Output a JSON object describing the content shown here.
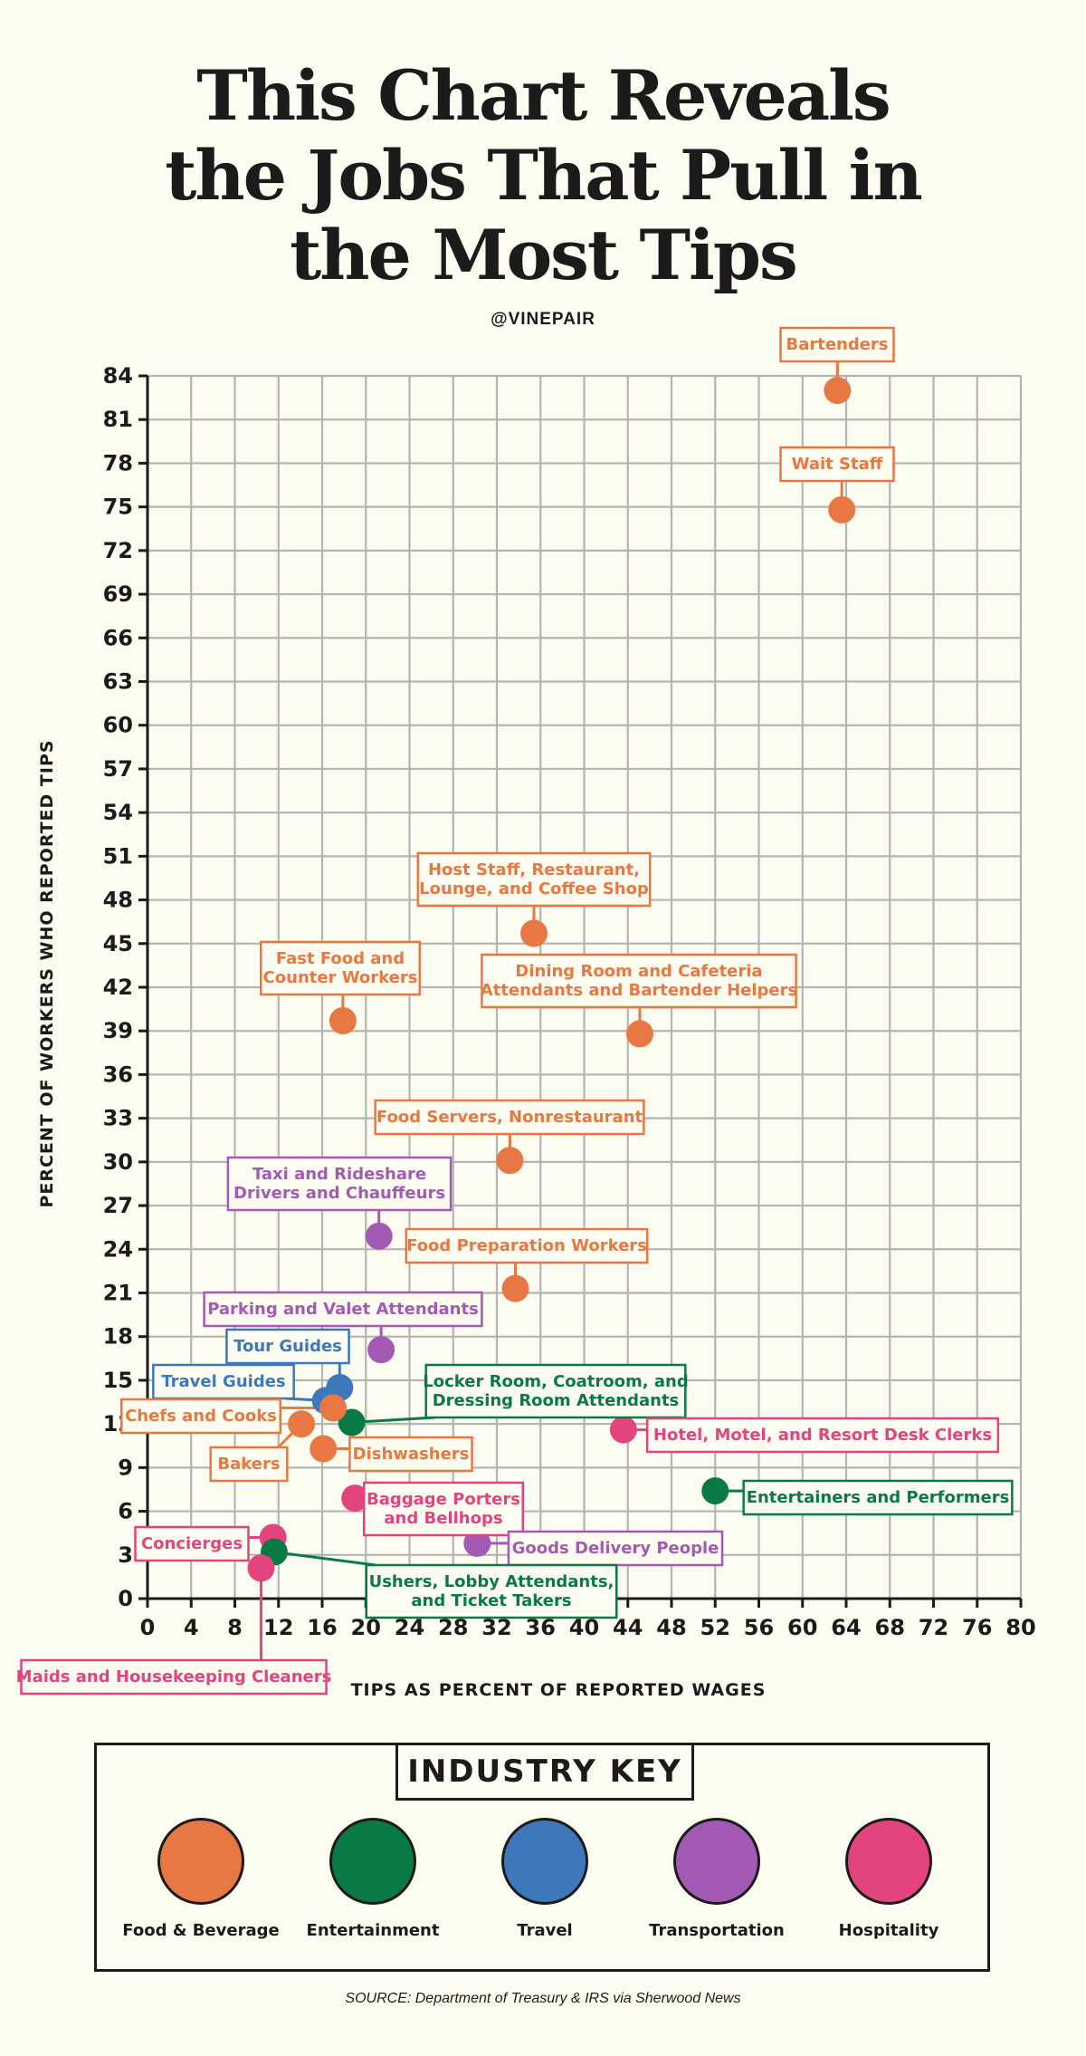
{
  "header": {
    "title_lines": [
      "This Chart Reveals",
      "the Jobs That Pull in",
      "the Most Tips"
    ],
    "handle": "@VINEPAIR"
  },
  "chart_data": {
    "type": "scatter",
    "xlabel": "TIPS AS PERCENT OF REPORTED WAGES",
    "ylabel": "PERCENT OF WORKERS WHO REPORTED TIPS",
    "xlim": [
      0,
      80
    ],
    "ylim": [
      0,
      84
    ],
    "xticks": [
      0,
      4,
      8,
      12,
      16,
      20,
      24,
      28,
      32,
      36,
      40,
      44,
      48,
      52,
      56,
      60,
      64,
      68,
      72,
      76,
      80
    ],
    "yticks": [
      0,
      3,
      6,
      9,
      12,
      15,
      18,
      21,
      24,
      27,
      30,
      33,
      36,
      39,
      42,
      45,
      48,
      51,
      54,
      57,
      60,
      63,
      66,
      69,
      72,
      75,
      78,
      81,
      84
    ],
    "grid": true,
    "industries": [
      {
        "name": "Food & Beverage",
        "color": "#e87843"
      },
      {
        "name": "Entertainment",
        "color": "#0a7a45"
      },
      {
        "name": "Travel",
        "color": "#3c78ba"
      },
      {
        "name": "Transportation",
        "color": "#a25ab4"
      },
      {
        "name": "Hospitality",
        "color": "#e3447e"
      }
    ],
    "points": [
      {
        "label": "Bartenders",
        "x": 63.2,
        "y": 83,
        "industry": 0
      },
      {
        "label": "Wait Staff",
        "x": 63.6,
        "y": 74.8,
        "industry": 0
      },
      {
        "label": "Host Staff, Restaurant, Lounge, and Coffee Shop",
        "x": 35.4,
        "y": 45.7,
        "industry": 0
      },
      {
        "label": "Fast Food and Counter Workers",
        "x": 17.9,
        "y": 39.7,
        "industry": 0
      },
      {
        "label": "Dining Room and Cafeteria Attendants and Bartender Helpers",
        "x": 45.1,
        "y": 38.8,
        "industry": 0
      },
      {
        "label": "Food Servers, Nonrestaurant",
        "x": 33.2,
        "y": 30.1,
        "industry": 0
      },
      {
        "label": "Taxi and Rideshare Drivers and Chauffeurs",
        "x": 21.2,
        "y": 24.9,
        "industry": 3
      },
      {
        "label": "Food Preparation Workers",
        "x": 33.7,
        "y": 21.3,
        "industry": 0
      },
      {
        "label": "Parking and Valet Attendants",
        "x": 21.4,
        "y": 17.1,
        "industry": 3
      },
      {
        "label": "Tour Guides",
        "x": 17.6,
        "y": 14.5,
        "industry": 2
      },
      {
        "label": "Travel Guides",
        "x": 16.3,
        "y": 13.6,
        "industry": 2
      },
      {
        "label": "Locker Room, Coatroom, and Dressing Room Attendants",
        "x": 18.7,
        "y": 12.1,
        "industry": 1
      },
      {
        "label": "Chefs and Cooks",
        "x": 17.0,
        "y": 13.1,
        "industry": 0
      },
      {
        "label": "Bakers",
        "x": 14.1,
        "y": 12.0,
        "industry": 0
      },
      {
        "label": "Hotel, Motel, and Resort Desk Clerks",
        "x": 43.6,
        "y": 11.6,
        "industry": 4
      },
      {
        "label": "Dishwashers",
        "x": 16.1,
        "y": 10.3,
        "industry": 0
      },
      {
        "label": "Entertainers and Performers",
        "x": 52.0,
        "y": 7.4,
        "industry": 1
      },
      {
        "label": "Baggage Porters and Bellhops",
        "x": 19.0,
        "y": 6.9,
        "industry": 4
      },
      {
        "label": "Concierges",
        "x": 11.5,
        "y": 4.2,
        "industry": 4
      },
      {
        "label": "Goods Delivery People",
        "x": 30.2,
        "y": 3.8,
        "industry": 3
      },
      {
        "label": "Ushers, Lobby Attendants, and Ticket Takers",
        "x": 11.6,
        "y": 3.2,
        "industry": 1
      },
      {
        "label": "Maids and Housekeeping Cleaners",
        "x": 10.4,
        "y": 2.1,
        "industry": 4
      }
    ]
  },
  "legend": {
    "title": "INDUSTRY KEY"
  },
  "source": "SOURCE: Department of Treasury & IRS via Sherwood News"
}
